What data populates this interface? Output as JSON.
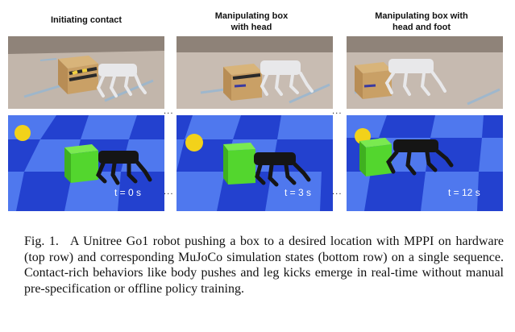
{
  "panels": [
    {
      "title": "Initiating contact",
      "time": "t = 0 s"
    },
    {
      "title": "Manipulating box\nwith head",
      "time": "t = 3 s"
    },
    {
      "title": "Manipulating box with\nhead and foot",
      "time": "t = 12 s"
    }
  ],
  "separator": "...",
  "caption": {
    "label": "Fig. 1.",
    "text": "A Unitree Go1 robot pushing a box to a desired location with MPPI on hardware (top row) and corresponding MuJoCo simulation states (bottom row) on a single sequence. Contact-rich behaviors like body pushes and leg kicks emerge in real-time without manual pre-specification or offline policy training."
  },
  "colors": {
    "floor_dark": "#1f3cc8",
    "floor_light": "#4f78ee",
    "box_green": "#53d62e",
    "ball_yellow": "#f2d21a",
    "carpet": "#c4b8ad"
  }
}
